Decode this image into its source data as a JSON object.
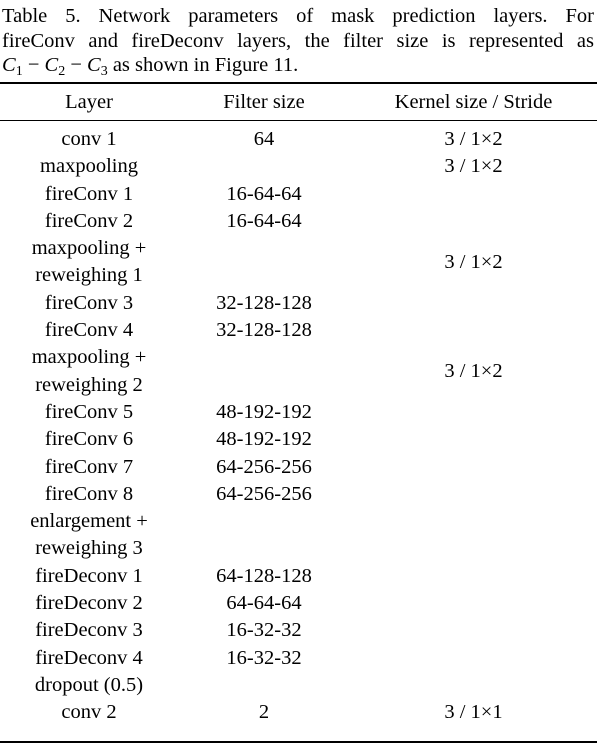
{
  "caption": {
    "line1": "Table 5. Network parameters of mask prediction layers.   For",
    "line2": "fireConv and fireDeconv layers, the filter size is represented as",
    "math_c1": "C",
    "sub1": "1",
    "math_minus1": " − ",
    "math_c2": "C",
    "sub2": "2",
    "math_minus2": " − ",
    "math_c3": "C",
    "sub3": "3",
    "line3_tail": " as shown in Figure 11."
  },
  "table": {
    "headers": {
      "layer": "Layer",
      "filter": "Filter size",
      "kernel": "Kernel size / Stride"
    },
    "rows": [
      {
        "layer": [
          "conv 1"
        ],
        "filter": "64",
        "kernel": "3 / 1×2"
      },
      {
        "layer": [
          "maxpooling"
        ],
        "filter": "",
        "kernel": "3 / 1×2"
      },
      {
        "layer": [
          "fireConv 1"
        ],
        "filter": "16-64-64",
        "kernel": ""
      },
      {
        "layer": [
          "fireConv 2"
        ],
        "filter": "16-64-64",
        "kernel": ""
      },
      {
        "layer": [
          "maxpooling +",
          "reweighing 1"
        ],
        "filter": "",
        "kernel": "3 / 1×2"
      },
      {
        "layer": [
          "fireConv 3"
        ],
        "filter": "32-128-128",
        "kernel": ""
      },
      {
        "layer": [
          "fireConv 4"
        ],
        "filter": "32-128-128",
        "kernel": ""
      },
      {
        "layer": [
          "maxpooling +",
          "reweighing 2"
        ],
        "filter": "",
        "kernel": "3 / 1×2"
      },
      {
        "layer": [
          "fireConv 5"
        ],
        "filter": "48-192-192",
        "kernel": ""
      },
      {
        "layer": [
          "fireConv 6"
        ],
        "filter": "48-192-192",
        "kernel": ""
      },
      {
        "layer": [
          "fireConv 7"
        ],
        "filter": "64-256-256",
        "kernel": ""
      },
      {
        "layer": [
          "fireConv 8"
        ],
        "filter": "64-256-256",
        "kernel": ""
      },
      {
        "layer": [
          "enlargement +",
          "reweighing 3"
        ],
        "filter": "",
        "kernel": ""
      },
      {
        "layer": [
          "fireDeconv 1"
        ],
        "filter": "64-128-128",
        "kernel": ""
      },
      {
        "layer": [
          "fireDeconv 2"
        ],
        "filter": "64-64-64",
        "kernel": ""
      },
      {
        "layer": [
          "fireDeconv 3"
        ],
        "filter": "16-32-32",
        "kernel": ""
      },
      {
        "layer": [
          "fireDeconv 4"
        ],
        "filter": "16-32-32",
        "kernel": ""
      },
      {
        "layer": [
          "dropout (0.5)"
        ],
        "filter": "",
        "kernel": ""
      },
      {
        "layer": [
          "conv 2"
        ],
        "filter": "2",
        "kernel": "3 / 1×1"
      }
    ]
  }
}
